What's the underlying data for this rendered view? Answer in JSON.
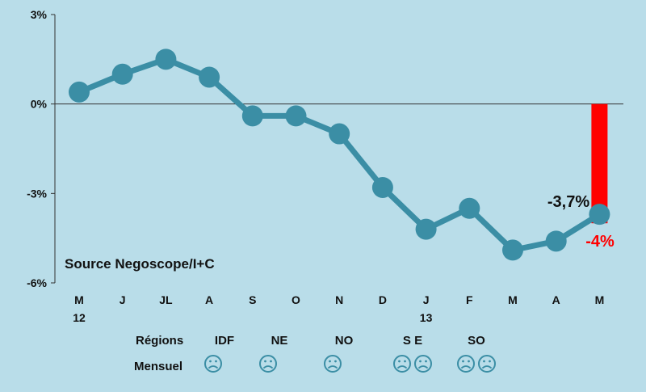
{
  "chart_data": {
    "type": "line",
    "categories": [
      "M",
      "J",
      "JL",
      "A",
      "S",
      "O",
      "N",
      "D",
      "J",
      "F",
      "M",
      "A",
      "M"
    ],
    "category_sublabels": [
      "12",
      "",
      "",
      "",
      "",
      "",
      "",
      "",
      "13",
      "",
      "",
      "",
      ""
    ],
    "series": [
      {
        "values": [
          0.4,
          1.0,
          1.5,
          0.9,
          -0.4,
          -0.4,
          -1.0,
          -2.8,
          -4.2,
          -3.5,
          -4.9,
          -4.6,
          -3.7
        ],
        "color": "#3b8ea5"
      }
    ],
    "bar": {
      "category_index": 12,
      "value": -4.0,
      "color": "#ff0000"
    },
    "annotations": {
      "line_value_label": "-3,7%",
      "bar_value_label": "-4%",
      "source": "Source Negoscope/I+C"
    },
    "yticks": [
      {
        "value": 3,
        "label": "3%"
      },
      {
        "value": 0,
        "label": "0%"
      },
      {
        "value": -3,
        "label": "-3%"
      },
      {
        "value": -6,
        "label": "-6%"
      }
    ],
    "ylim": [
      -6,
      3
    ],
    "grid": false,
    "colors": {
      "background": "#b9dde9",
      "line": "#3b8ea5",
      "bar": "#ff0000",
      "axis": "#333333",
      "text": "#111111",
      "highlight": "#ff0000"
    }
  },
  "regions": {
    "label": "Régions",
    "monthly_label": "Mensuel",
    "items": [
      {
        "name": "IDF",
        "faces": 1,
        "face_icon": "sad-face-icon"
      },
      {
        "name": "NE",
        "faces": 1,
        "face_icon": "sad-face-icon"
      },
      {
        "name": "NO",
        "faces": 1,
        "face_icon": "sad-face-icon"
      },
      {
        "name": "S E",
        "faces": 2,
        "face_icon": "sad-face-icon"
      },
      {
        "name": "SO",
        "faces": 2,
        "face_icon": "sad-face-icon"
      }
    ]
  }
}
